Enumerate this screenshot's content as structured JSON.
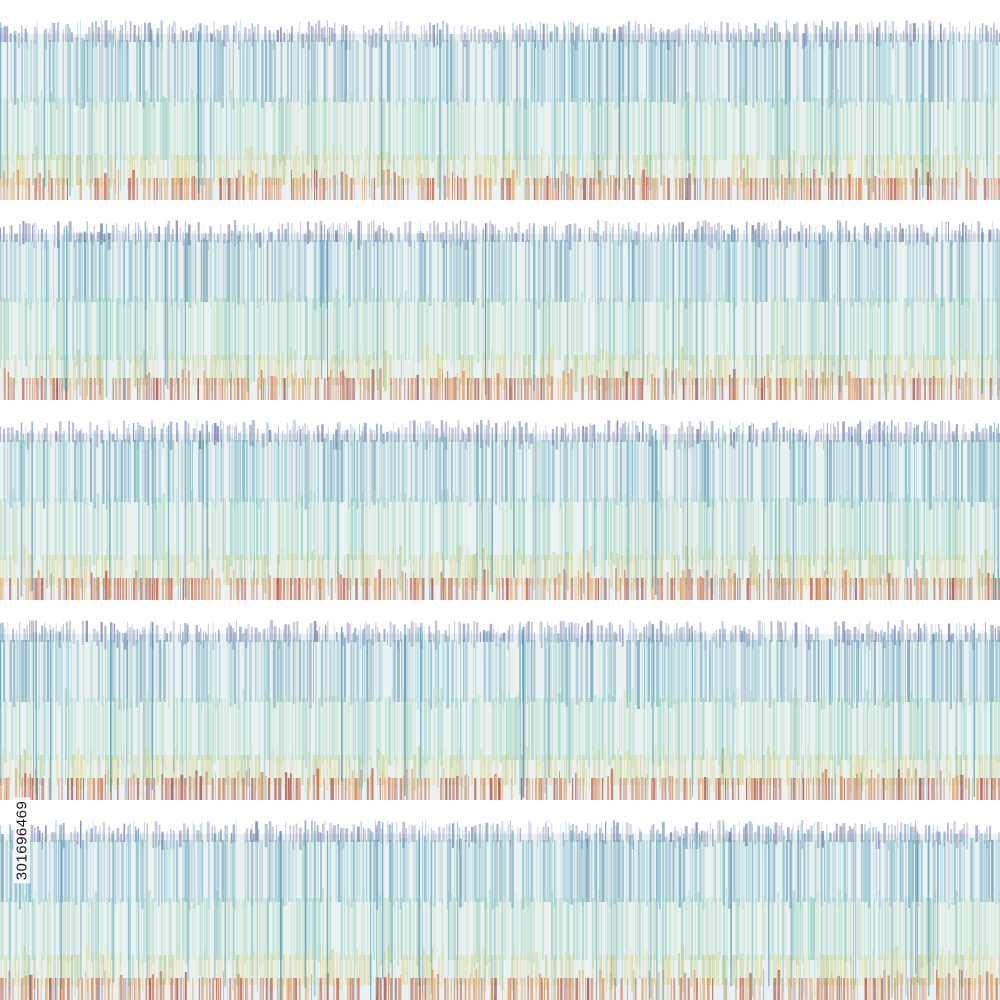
{
  "image": {
    "description_kind": "pattern",
    "background": "#ffffff",
    "band_count": 5,
    "palette": {
      "top": [
        "#5d5c96",
        "#7a79ad",
        "#9c9bc4",
        "#6e86b4"
      ],
      "upper": [
        "#5f9fb8",
        "#7eb6c8",
        "#9fcdd6",
        "#4f8fb0",
        "#87c3c9"
      ],
      "middle": [
        "#8ccbb8",
        "#a8d6b8",
        "#b9dcc4",
        "#9ad0c6",
        "#c7e3c9"
      ],
      "lower": [
        "#d9d790",
        "#c9cf85",
        "#e0d99a",
        "#b8c98a",
        "#e6dca6"
      ],
      "bottom": [
        "#d98a5a",
        "#c9644c",
        "#e0a36a",
        "#b55a4e",
        "#cf8a6f",
        "#e3b27a",
        "#a7554f"
      ]
    }
  },
  "stock_id": {
    "text": "301696469"
  }
}
